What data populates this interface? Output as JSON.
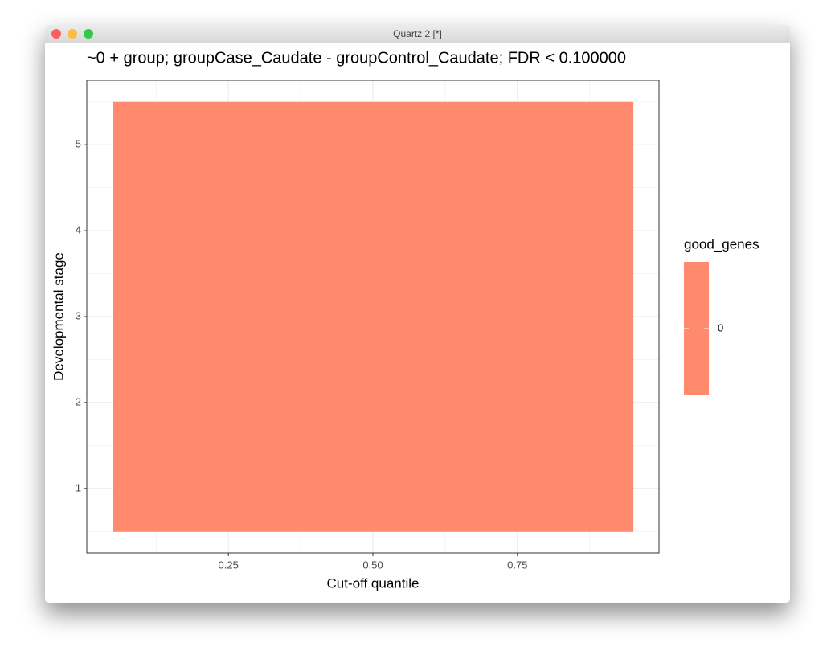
{
  "window_title": "Quartz 2 [*]",
  "chart_data": {
    "type": "heatmap",
    "title": "~0 + group; groupCase_Caudate - groupControl_Caudate; FDR < 0.100000",
    "x_label": "Cut-off quantile",
    "y_label": "Developmental stage",
    "x": [
      0.1,
      0.2,
      0.3,
      0.4,
      0.5,
      0.6,
      0.7,
      0.8,
      0.9
    ],
    "y": [
      1,
      2,
      3,
      4,
      5
    ],
    "values": [
      [
        0,
        0,
        0,
        0,
        0,
        0,
        0,
        0,
        0
      ],
      [
        0,
        0,
        0,
        0,
        0,
        0,
        0,
        0,
        0
      ],
      [
        0,
        0,
        0,
        0,
        0,
        0,
        0,
        0,
        0
      ],
      [
        0,
        0,
        0,
        0,
        0,
        0,
        0,
        0,
        0
      ],
      [
        0,
        0,
        0,
        0,
        0,
        0,
        0,
        0,
        0
      ]
    ],
    "tile_width": 0.1,
    "tile_height": 1,
    "color": "#ff8a6d",
    "xlim": [
      0.005,
      0.995
    ],
    "ylim": [
      0.25,
      5.75
    ],
    "xticks": [
      0.25,
      {
        "value": 0.5,
        "label": "0.50"
      },
      0.75
    ],
    "yticks": [
      1,
      2,
      3,
      4,
      5
    ],
    "xminor": [
      0.125,
      0.375,
      0.625,
      0.875
    ],
    "yminor": [
      0.5,
      1.5,
      2.5,
      3.5,
      4.5,
      5.5
    ],
    "grid": true,
    "legend": {
      "title": "good_genes",
      "ticks": [
        0
      ]
    }
  }
}
